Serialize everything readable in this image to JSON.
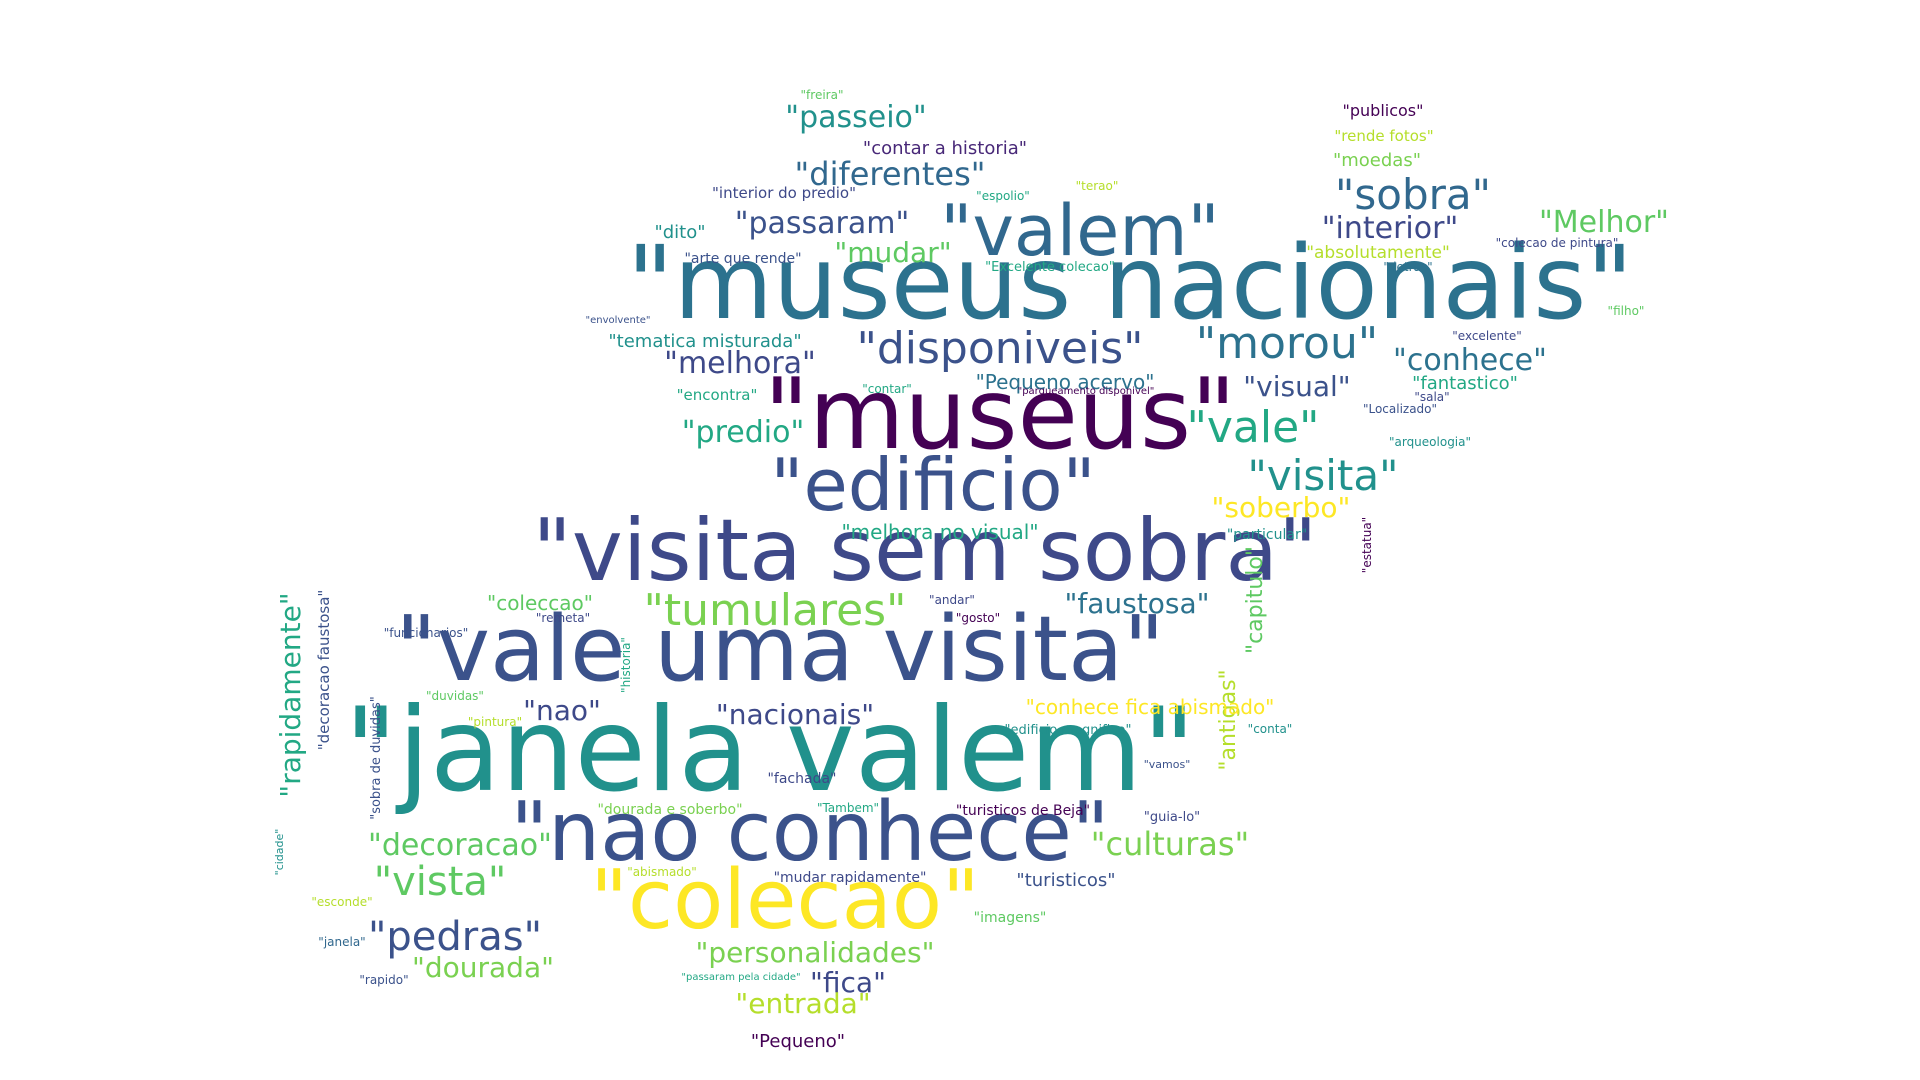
{
  "words": [
    {
      "text": "\"museus nacionais\"",
      "color": "#2c728e"
    },
    {
      "text": "\"museus\"",
      "color": "#440154"
    },
    {
      "text": "\"janela valem\"",
      "color": "#21918c"
    },
    {
      "text": "\"vale uma visita\"",
      "color": "#3b528b"
    },
    {
      "text": "\"visita sem sobra\"",
      "color": "#3e4989"
    },
    {
      "text": "\"nao conhece\"",
      "color": "#3b528b"
    },
    {
      "text": "\"colecao\"",
      "color": "#fde725"
    },
    {
      "text": "\"edificio\"",
      "color": "#3b528b"
    },
    {
      "text": "\"valem\"",
      "color": "#31688e"
    },
    {
      "text": "\"disponiveis\"",
      "color": "#3b528b"
    },
    {
      "text": "\"morou\"",
      "color": "#2c728e"
    },
    {
      "text": "\"tumulares\"",
      "color": "#7ad151"
    },
    {
      "text": "\"vale\"",
      "color": "#22a884"
    },
    {
      "text": "\"visita\"",
      "color": "#21918c"
    },
    {
      "text": "\"sobra\"",
      "color": "#31688e"
    },
    {
      "text": "\"vista\"",
      "color": "#5ec962"
    },
    {
      "text": "\"pedras\"",
      "color": "#3b528b"
    },
    {
      "text": "\"decoracao\"",
      "color": "#5ec962"
    },
    {
      "text": "\"culturas\"",
      "color": "#7ad151"
    },
    {
      "text": "\"diferentes\"",
      "color": "#31688e"
    },
    {
      "text": "\"passeio\"",
      "color": "#21918c"
    },
    {
      "text": "\"passaram\"",
      "color": "#3b528b"
    },
    {
      "text": "\"interior\"",
      "color": "#3e4989"
    },
    {
      "text": "\"Melhor\"",
      "color": "#5ec962"
    },
    {
      "text": "\"conhece\"",
      "color": "#2c728e"
    },
    {
      "text": "\"predio\"",
      "color": "#22a884"
    },
    {
      "text": "\"melhora\"",
      "color": "#3e4989"
    },
    {
      "text": "\"soberbo\"",
      "color": "#fde725"
    },
    {
      "text": "\"faustosa\"",
      "color": "#2c728e"
    },
    {
      "text": "\"nacionais\"",
      "color": "#3e4989"
    },
    {
      "text": "\"personalidades\"",
      "color": "#7ad151"
    },
    {
      "text": "\"dourada\"",
      "color": "#7ad151"
    },
    {
      "text": "\"entrada\"",
      "color": "#b5de2b"
    },
    {
      "text": "\"fica\"",
      "color": "#3e4989"
    },
    {
      "text": "\"mudar\"",
      "color": "#5ec962"
    },
    {
      "text": "\"visual\"",
      "color": "#3b528b"
    },
    {
      "text": "\"nao\"",
      "color": "#3e4989"
    },
    {
      "text": "\"rapidamente\"",
      "color": "#22a884"
    },
    {
      "text": "\"antigas\"",
      "color": "#b5de2b"
    },
    {
      "text": "\"capitulo\"",
      "color": "#5ec962"
    },
    {
      "text": "\"coleccao\"",
      "color": "#5ec962"
    },
    {
      "text": "\"melhora no visual\"",
      "color": "#22a884"
    },
    {
      "text": "\"conhece fica abismado\"",
      "color": "#fde725"
    },
    {
      "text": "\"Pequeno acervo\"",
      "color": "#2c728e"
    },
    {
      "text": "\"tematica misturada\"",
      "color": "#21918c"
    },
    {
      "text": "\"turisticos\"",
      "color": "#3b528b"
    },
    {
      "text": "\"contar a historia\"",
      "color": "#482878"
    },
    {
      "text": "\"fantastico\"",
      "color": "#22a884"
    },
    {
      "text": "\"absolutamente\"",
      "color": "#b5de2b"
    },
    {
      "text": "\"moedas\"",
      "color": "#7ad151"
    },
    {
      "text": "\"dito\"",
      "color": "#21918c"
    },
    {
      "text": "\"Pequeno\"",
      "color": "#440154"
    },
    {
      "text": "\"publicos\"",
      "color": "#440154"
    },
    {
      "text": "\"decoracao faustosa\"",
      "color": "#3b528b"
    },
    {
      "text": "\"rende fotos\"",
      "color": "#b5de2b"
    },
    {
      "text": "\"encontra\"",
      "color": "#22a884"
    },
    {
      "text": "\"interior do predio\"",
      "color": "#3e4989"
    },
    {
      "text": "\"arte que rende\"",
      "color": "#3b528b"
    },
    {
      "text": "\"dourada e soberbo\"",
      "color": "#7ad151"
    },
    {
      "text": "\"mudar rapidamente\"",
      "color": "#3e4989"
    },
    {
      "text": "\"imagens\"",
      "color": "#5ec962"
    },
    {
      "text": "\"particular\"",
      "color": "#21918c"
    },
    {
      "text": "\"fachada\"",
      "color": "#3e4989"
    },
    {
      "text": "\"turisticos de Beja\"",
      "color": "#440154"
    },
    {
      "text": "\"Excelente colecao\"",
      "color": "#22a884"
    },
    {
      "text": "\"edificio magnifico\"",
      "color": "#21918c"
    },
    {
      "text": "\"sobra de duvidas\"",
      "color": "#3b528b"
    },
    {
      "text": "\"Tambem\"",
      "color": "#22a884"
    },
    {
      "text": "\"guia-lo\"",
      "color": "#3e4989"
    },
    {
      "text": "\"colecao de pintura\"",
      "color": "#3e4989"
    },
    {
      "text": "\"arqueologia\"",
      "color": "#21918c"
    },
    {
      "text": "\"freira\"",
      "color": "#5ec962"
    },
    {
      "text": "\"espolio\"",
      "color": "#22a884"
    },
    {
      "text": "\"terao\"",
      "color": "#b5de2b"
    },
    {
      "text": "\"detras\"",
      "color": "#2c728e"
    },
    {
      "text": "\"filho\"",
      "color": "#5ec962"
    },
    {
      "text": "\"excelente\"",
      "color": "#3e4989"
    },
    {
      "text": "\"sala\"",
      "color": "#3e4989"
    },
    {
      "text": "\"Localizado\"",
      "color": "#3b528b"
    },
    {
      "text": "\"contar\"",
      "color": "#22a884"
    },
    {
      "text": "\"estatua\"",
      "color": "#440154"
    },
    {
      "text": "\"andar\"",
      "color": "#3e4989"
    },
    {
      "text": "\"gosto\"",
      "color": "#440154"
    },
    {
      "text": "\"remeta\"",
      "color": "#3e4989"
    },
    {
      "text": "\"funcionarios\"",
      "color": "#3b528b"
    },
    {
      "text": "\"historia\"",
      "color": "#22a884"
    },
    {
      "text": "\"duvidas\"",
      "color": "#5ec962"
    },
    {
      "text": "\"pintura\"",
      "color": "#b5de2b"
    },
    {
      "text": "\"conta\"",
      "color": "#21918c"
    },
    {
      "text": "\"vamos\"",
      "color": "#3b528b"
    },
    {
      "text": "\"abismado\"",
      "color": "#b5de2b"
    },
    {
      "text": "\"esconde\"",
      "color": "#b5de2b"
    },
    {
      "text": "\"janela\"",
      "color": "#31688e"
    },
    {
      "text": "\"rapido\"",
      "color": "#3b528b"
    },
    {
      "text": "\"cidade\"",
      "color": "#21918c"
    },
    {
      "text": "\"passaram pela cidade\"",
      "color": "#22a884"
    },
    {
      "text": "\"envolvente\"",
      "color": "#3b528b"
    },
    {
      "text": "\"parqueamento disponivel\"",
      "color": "#440154"
    }
  ]
}
